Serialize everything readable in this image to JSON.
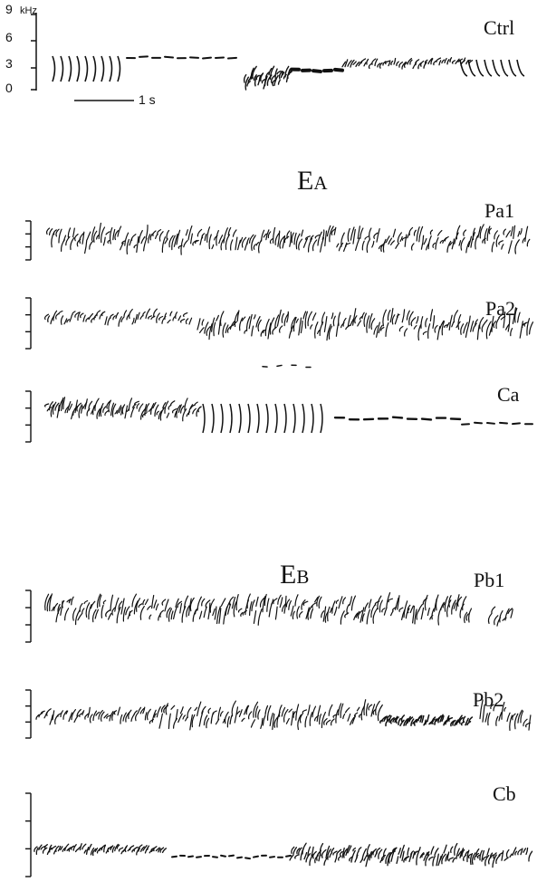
{
  "scale": {
    "unit": "kHz",
    "ticks": [
      "9",
      "6",
      "3",
      "0"
    ],
    "time_bar": "1 s"
  },
  "groups": [
    {
      "main": "E",
      "sub": "A"
    },
    {
      "main": "E",
      "sub": "B"
    }
  ],
  "tracks": [
    {
      "id": "ctrl",
      "label": "Ctrl"
    },
    {
      "id": "pa1",
      "label": "Pa1"
    },
    {
      "id": "pa2",
      "label": "Pa2"
    },
    {
      "id": "ca",
      "label": "Ca"
    },
    {
      "id": "pb1",
      "label": "Pb1"
    },
    {
      "id": "pb2",
      "label": "Pb2"
    },
    {
      "id": "cb",
      "label": "Cb"
    }
  ]
}
